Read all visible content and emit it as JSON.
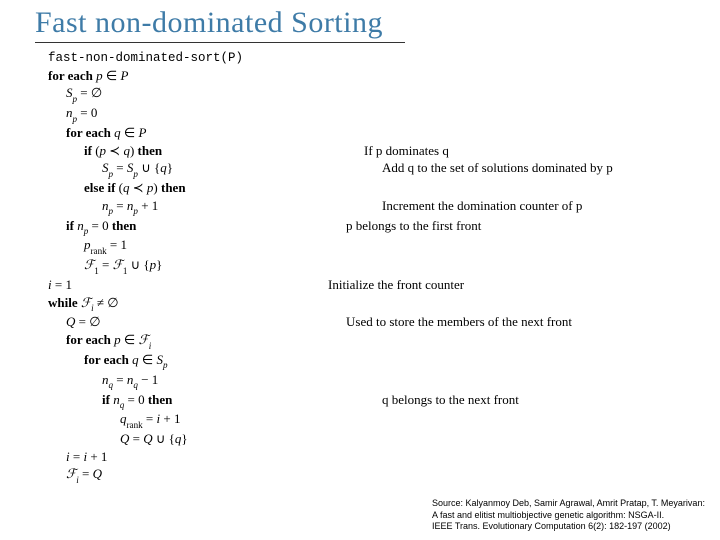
{
  "title": "Fast non-dominated Sorting",
  "title_color": "#3e7ba7",
  "title_fontsize": 30,
  "background_color": "#ffffff",
  "text_color": "#000000",
  "body_fontsize": 13,
  "algorithm": {
    "header": "fast-non-dominated-sort(P)",
    "lines": [
      {
        "indent": 0,
        "code": "for each p ∈ P",
        "code_prefix_bold": "for each",
        "italic_vars": [
          "p",
          "P"
        ],
        "comment": ""
      },
      {
        "indent": 1,
        "code": "Sₚ = ∅",
        "italic_vars": [
          "S",
          "p"
        ],
        "comment": ""
      },
      {
        "indent": 1,
        "code": "nₚ = 0",
        "italic_vars": [
          "n",
          "p"
        ],
        "comment": ""
      },
      {
        "indent": 1,
        "code": "for each q ∈ P",
        "code_prefix_bold": "for each",
        "italic_vars": [
          "q",
          "P"
        ],
        "comment": ""
      },
      {
        "indent": 2,
        "code": "if (p ≺ q) then",
        "code_prefix_bold": "if",
        "code_suffix_bold": "then",
        "italic_vars": [
          "p",
          "q"
        ],
        "comment": "If p dominates q"
      },
      {
        "indent": 3,
        "code": "Sₚ = Sₚ ∪ {q}",
        "italic_vars": [
          "S",
          "p",
          "q"
        ],
        "comment": "Add q to the set of solutions dominated by p"
      },
      {
        "indent": 2,
        "code": "else if (q ≺ p) then",
        "code_prefix_bold": "else if",
        "code_suffix_bold": "then",
        "italic_vars": [
          "q",
          "p"
        ],
        "comment": ""
      },
      {
        "indent": 3,
        "code": "nₚ = nₚ + 1",
        "italic_vars": [
          "n",
          "p"
        ],
        "comment": "Increment the domination counter of p"
      },
      {
        "indent": 1,
        "code": "if nₚ = 0 then",
        "code_prefix_bold": "if",
        "code_suffix_bold": "then",
        "italic_vars": [
          "n",
          "p"
        ],
        "comment": "p belongs to the first front"
      },
      {
        "indent": 2,
        "code": "p_rank = 1",
        "italic_vars": [
          "p",
          "rank"
        ],
        "comment": ""
      },
      {
        "indent": 2,
        "code": "ℱ₁ = ℱ₁ ∪ {p}",
        "italic_vars": [
          "ℱ",
          "p"
        ],
        "comment": ""
      },
      {
        "indent": 0,
        "code": "i = 1",
        "italic_vars": [
          "i"
        ],
        "comment": "Initialize the front counter"
      },
      {
        "indent": 0,
        "code": "while ℱᵢ ≠ ∅",
        "code_prefix_bold": "while",
        "italic_vars": [
          "ℱ",
          "i"
        ],
        "comment": ""
      },
      {
        "indent": 1,
        "code": "Q = ∅",
        "italic_vars": [
          "Q"
        ],
        "comment": "Used to store the members of the next front"
      },
      {
        "indent": 1,
        "code": "for each p ∈ ℱᵢ",
        "code_prefix_bold": "for each",
        "italic_vars": [
          "p",
          "ℱ",
          "i"
        ],
        "comment": ""
      },
      {
        "indent": 2,
        "code": "for each q ∈ Sₚ",
        "code_prefix_bold": "for each",
        "italic_vars": [
          "q",
          "S",
          "p"
        ],
        "comment": ""
      },
      {
        "indent": 3,
        "code": "n_q = n_q − 1",
        "italic_vars": [
          "n",
          "q"
        ],
        "comment": ""
      },
      {
        "indent": 3,
        "code": "if n_q = 0 then",
        "code_prefix_bold": "if",
        "code_suffix_bold": "then",
        "italic_vars": [
          "n",
          "q"
        ],
        "comment": "q belongs to the next front"
      },
      {
        "indent": 4,
        "code": "q_rank = i + 1",
        "italic_vars": [
          "q",
          "rank",
          "i"
        ],
        "comment": ""
      },
      {
        "indent": 4,
        "code": "Q = Q ∪ {q}",
        "italic_vars": [
          "Q",
          "q"
        ],
        "comment": ""
      },
      {
        "indent": 1,
        "code": "i = i + 1",
        "italic_vars": [
          "i"
        ],
        "comment": ""
      },
      {
        "indent": 1,
        "code": "ℱᵢ = Q",
        "italic_vars": [
          "ℱ",
          "i",
          "Q"
        ],
        "comment": ""
      }
    ]
  },
  "source": {
    "line1": "Source: Kalyanmoy Deb, Samir Agrawal, Amrit Pratap, T. Meyarivan:",
    "line2": "A fast and elitist multiobjective genetic algorithm: NSGA-II.",
    "line3": "IEEE Trans. Evolutionary Computation 6(2): 182-197 (2002)"
  }
}
